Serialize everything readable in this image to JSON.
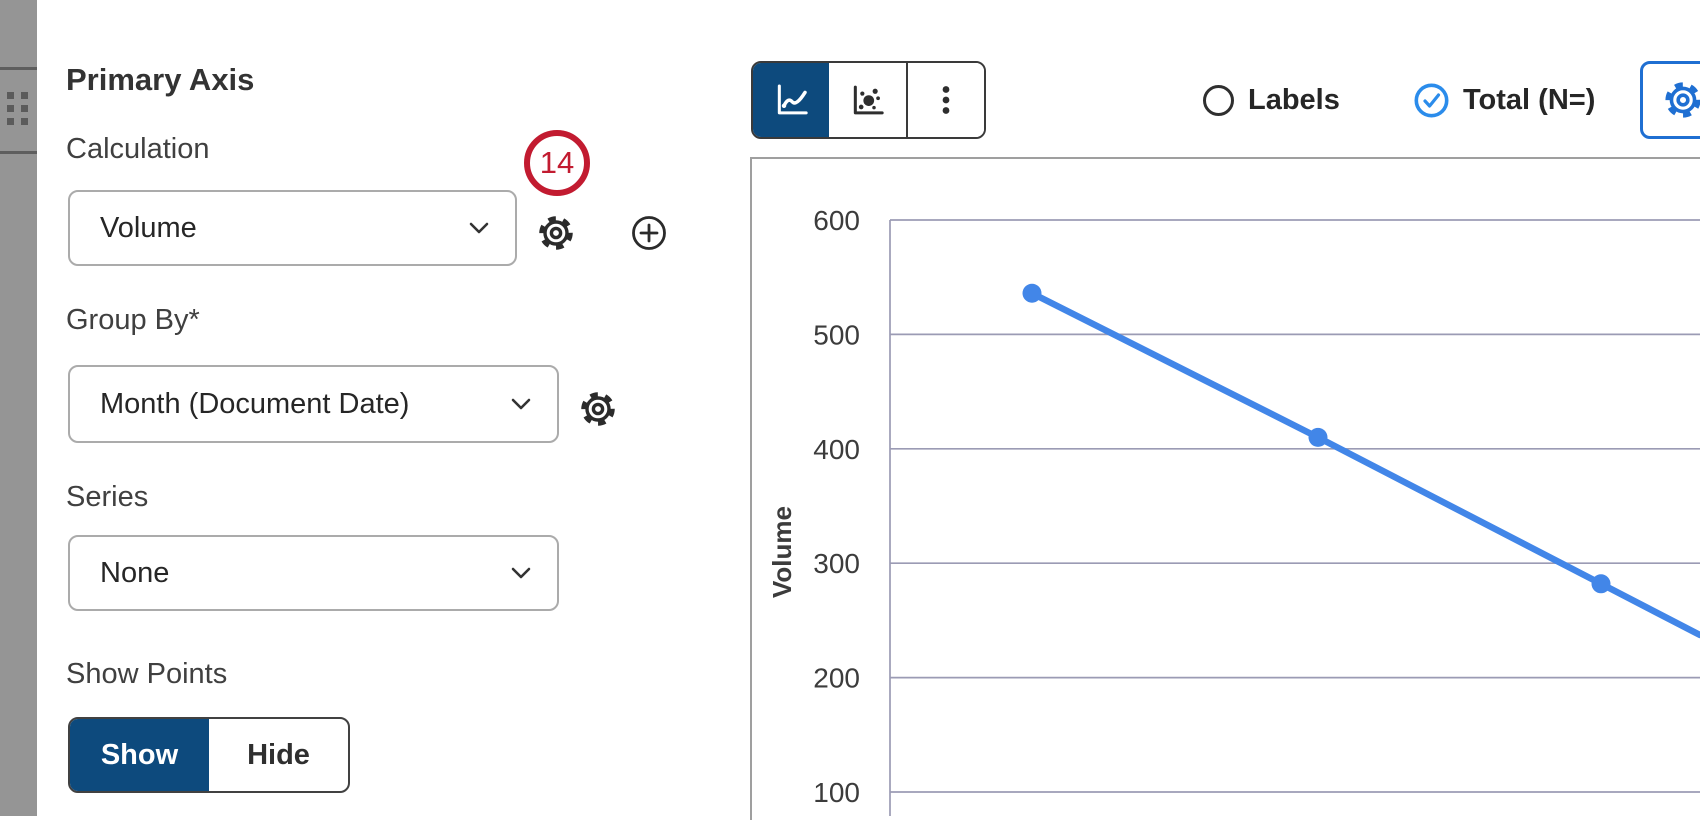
{
  "left_panel": {
    "title": "Primary Axis",
    "calculation": {
      "label": "Calculation",
      "value": "Volume"
    },
    "group_by": {
      "label": "Group By*",
      "value": "Month (Document Date)"
    },
    "series": {
      "label": "Series",
      "value": "None"
    },
    "show_points": {
      "label": "Show Points",
      "options": [
        "Show",
        "Hide"
      ],
      "selected": "Show"
    }
  },
  "annotation_badge": {
    "number": "14"
  },
  "toolbar": {
    "chart_types": [
      {
        "icon": "line-chart-icon",
        "selected": true
      },
      {
        "icon": "bubble-chart-icon",
        "selected": false
      },
      {
        "icon": "kebab-menu-icon",
        "selected": false
      }
    ],
    "labels_toggle": {
      "label": "Labels",
      "checked": false
    },
    "total_toggle": {
      "label": "Total (N=)",
      "checked": true
    },
    "settings_button_icon": "gear-icon"
  },
  "colors": {
    "navy_selected": "#0d4a7d",
    "line_blue": "#4286e8",
    "check_blue": "#2b8ceb",
    "settings_border_blue": "#1f6fd2",
    "annotation_red": "#c21b30",
    "gridline": "#9b9bb4",
    "axis_text": "#3c3c3c"
  },
  "chart_data": {
    "type": "line",
    "ylabel": "Volume",
    "y_ticks": [
      600,
      500,
      400,
      300,
      200,
      100
    ],
    "ylim_visible": [
      100,
      600
    ],
    "grid": true,
    "legend": false,
    "markers": true,
    "x_tick_labels_visible": false,
    "series": [
      {
        "name": "Volume",
        "values": [
          536,
          410,
          282
        ]
      }
    ],
    "line_continues_offscreen_right": true
  }
}
